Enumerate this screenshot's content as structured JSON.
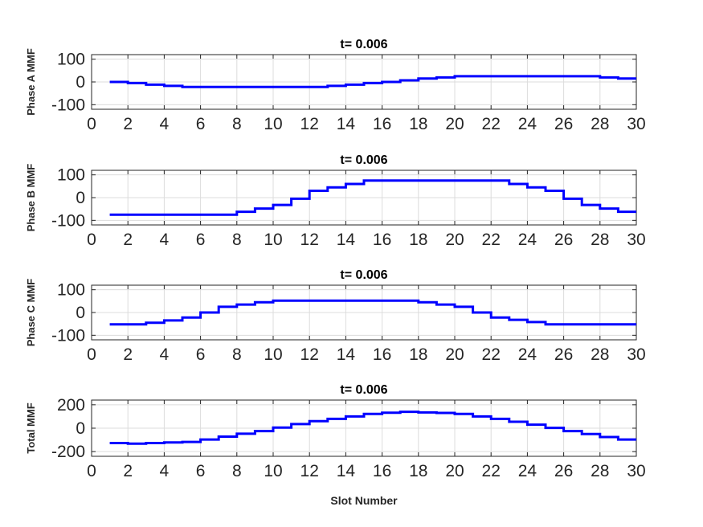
{
  "figure": {
    "xlabel": "Slot Number"
  },
  "chart_data": [
    {
      "type": "line",
      "title": "t= 0.006",
      "ylabel": "Phase A MMF",
      "xlabel": "",
      "xlim": [
        0,
        30
      ],
      "ylim": [
        -120,
        120
      ],
      "xticks": [
        0,
        2,
        4,
        6,
        8,
        10,
        12,
        14,
        16,
        18,
        20,
        22,
        24,
        26,
        28,
        30
      ],
      "yticks": [
        100,
        0,
        -100
      ],
      "grid": true,
      "color": "#0000ff",
      "step": true,
      "x": [
        1,
        2,
        3,
        4,
        5,
        6,
        7,
        8,
        9,
        10,
        11,
        12,
        13,
        14,
        15,
        16,
        17,
        18,
        19,
        20,
        21,
        22,
        23,
        24,
        25,
        26,
        27,
        28,
        29,
        30
      ],
      "values": [
        0,
        -5,
        -12,
        -17,
        -22,
        -22,
        -22,
        -22,
        -22,
        -22,
        -22,
        -22,
        -17,
        -12,
        -5,
        0,
        7,
        15,
        20,
        25,
        25,
        25,
        25,
        25,
        25,
        25,
        25,
        20,
        15,
        15
      ]
    },
    {
      "type": "line",
      "title": "t= 0.006",
      "ylabel": "Phase B MMF",
      "xlabel": "",
      "xlim": [
        0,
        30
      ],
      "ylim": [
        -120,
        120
      ],
      "xticks": [
        0,
        2,
        4,
        6,
        8,
        10,
        12,
        14,
        16,
        18,
        20,
        22,
        24,
        26,
        28,
        30
      ],
      "yticks": [
        100,
        0,
        -100
      ],
      "grid": true,
      "color": "#0000ff",
      "step": true,
      "x": [
        1,
        2,
        3,
        4,
        5,
        6,
        7,
        8,
        9,
        10,
        11,
        12,
        13,
        14,
        15,
        16,
        17,
        18,
        19,
        20,
        21,
        22,
        23,
        24,
        25,
        26,
        27,
        28,
        29,
        30
      ],
      "values": [
        -75,
        -75,
        -75,
        -75,
        -75,
        -75,
        -75,
        -62,
        -48,
        -32,
        -5,
        30,
        45,
        60,
        75,
        75,
        75,
        75,
        75,
        75,
        75,
        75,
        60,
        45,
        30,
        -5,
        -32,
        -48,
        -62,
        -62
      ]
    },
    {
      "type": "line",
      "title": "t= 0.006",
      "ylabel": "Phase C MMF",
      "xlabel": "",
      "xlim": [
        0,
        30
      ],
      "ylim": [
        -120,
        120
      ],
      "xticks": [
        0,
        2,
        4,
        6,
        8,
        10,
        12,
        14,
        16,
        18,
        20,
        22,
        24,
        26,
        28,
        30
      ],
      "yticks": [
        100,
        0,
        -100
      ],
      "grid": true,
      "color": "#0000ff",
      "step": true,
      "x": [
        1,
        2,
        3,
        4,
        5,
        6,
        7,
        8,
        9,
        10,
        11,
        12,
        13,
        14,
        15,
        16,
        17,
        18,
        19,
        20,
        21,
        22,
        23,
        24,
        25,
        26,
        27,
        28,
        29,
        30
      ],
      "values": [
        -52,
        -52,
        -45,
        -35,
        -22,
        0,
        25,
        35,
        45,
        52,
        52,
        52,
        52,
        52,
        52,
        52,
        52,
        45,
        35,
        25,
        0,
        -22,
        -32,
        -42,
        -52,
        -52,
        -52,
        -52,
        -52,
        -52
      ]
    },
    {
      "type": "line",
      "title": "t= 0.006",
      "ylabel": "Total MMF",
      "xlabel": "Slot Number",
      "xlim": [
        0,
        30
      ],
      "ylim": [
        -240,
        240
      ],
      "xticks": [
        0,
        2,
        4,
        6,
        8,
        10,
        12,
        14,
        16,
        18,
        20,
        22,
        24,
        26,
        28,
        30
      ],
      "yticks": [
        200,
        0,
        -200
      ],
      "grid": true,
      "color": "#0000ff",
      "step": true,
      "x": [
        1,
        2,
        3,
        4,
        5,
        6,
        7,
        8,
        9,
        10,
        11,
        12,
        13,
        14,
        15,
        16,
        17,
        18,
        19,
        20,
        21,
        22,
        23,
        24,
        25,
        26,
        27,
        28,
        29,
        30
      ],
      "values": [
        -127,
        -132,
        -127,
        -122,
        -117,
        -97,
        -72,
        -47,
        -25,
        5,
        35,
        60,
        80,
        100,
        122,
        132,
        140,
        135,
        130,
        122,
        100,
        80,
        55,
        30,
        3,
        -25,
        -50,
        -75,
        -97,
        -97
      ]
    }
  ]
}
